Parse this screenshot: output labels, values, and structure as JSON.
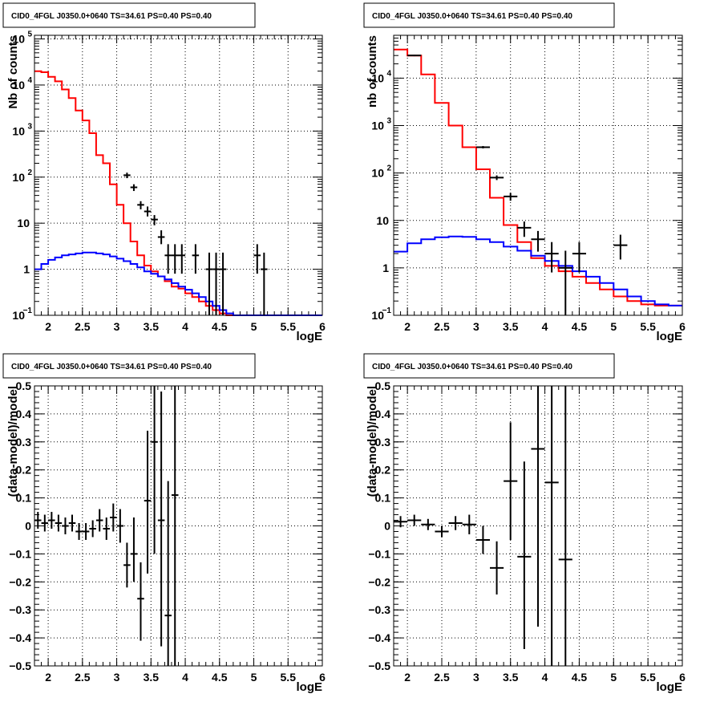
{
  "chart_data": [
    {
      "type": "line",
      "title": "CID0_4FGL J0350.0+0640 TS=34.61 PS=0.40 PS=0.40",
      "xlabel": "logE",
      "ylabel": "Nb of counts",
      "xlim": [
        1.8,
        6.0
      ],
      "ylim": [
        0.1,
        120000
      ],
      "yscale": "log",
      "grid": true,
      "x_ticks": [
        "2",
        "2.5",
        "3",
        "3.5",
        "4",
        "4.5",
        "5",
        "5.5",
        "6"
      ],
      "series": [
        {
          "kind": "step",
          "color": "#ff0000",
          "x0": 1.8,
          "width": 0.1,
          "values": [
            20000,
            19000,
            15000,
            12000,
            8000,
            5200,
            2800,
            1700,
            900,
            300,
            200,
            70,
            25,
            10,
            4,
            2,
            1.2,
            0.9,
            0.7,
            0.55,
            0.42,
            0.38,
            0.3,
            0.25,
            0.2,
            0.16,
            0.13,
            0.11,
            0.1,
            0.09,
            0.09,
            0.08,
            0.08,
            0.08,
            0.08,
            0.08,
            0.08,
            0.08,
            0.08,
            0.08,
            0.08,
            0.08
          ]
        },
        {
          "kind": "step",
          "color": "#0000ff",
          "x0": 1.8,
          "width": 0.1,
          "values": [
            1.0,
            1.3,
            1.6,
            1.8,
            2.0,
            2.1,
            2.2,
            2.3,
            2.3,
            2.2,
            2.1,
            1.9,
            1.7,
            1.5,
            1.3,
            1.1,
            0.9,
            0.8,
            0.7,
            0.6,
            0.5,
            0.42,
            0.36,
            0.3,
            0.25,
            0.2,
            0.16,
            0.13,
            0.11,
            0.1,
            0.09,
            0.08,
            0.08,
            0.08,
            0.08,
            0.08,
            0.08,
            0.08,
            0.08,
            0.08,
            0.08,
            0.08
          ]
        },
        {
          "kind": "errorbar",
          "color": "#000000",
          "points": [
            {
              "x": 3.15,
              "y": 110,
              "lo": 95,
              "hi": 125,
              "xerr": 0.05
            },
            {
              "x": 3.25,
              "y": 60,
              "lo": 50,
              "hi": 70,
              "xerr": 0.05
            },
            {
              "x": 3.35,
              "y": 25,
              "lo": 20,
              "hi": 30,
              "xerr": 0.05
            },
            {
              "x": 3.45,
              "y": 18,
              "lo": 14,
              "hi": 23,
              "xerr": 0.05
            },
            {
              "x": 3.55,
              "y": 12,
              "lo": 9,
              "hi": 15,
              "xerr": 0.05
            },
            {
              "x": 3.65,
              "y": 5,
              "lo": 3.5,
              "hi": 7,
              "xerr": 0.05
            },
            {
              "x": 3.75,
              "y": 2,
              "lo": 0.8,
              "hi": 3.5,
              "xerr": 0.05
            },
            {
              "x": 3.85,
              "y": 2,
              "lo": 0.8,
              "hi": 3.5,
              "xerr": 0.05
            },
            {
              "x": 3.95,
              "y": 2,
              "lo": 0.8,
              "hi": 3.5,
              "xerr": 0.05
            },
            {
              "x": 4.15,
              "y": 2,
              "lo": 0.8,
              "hi": 3.5,
              "xerr": 0.05
            },
            {
              "x": 4.35,
              "y": 1,
              "lo": 0.1,
              "hi": 2.3,
              "xerr": 0.05
            },
            {
              "x": 4.45,
              "y": 1,
              "lo": 0.1,
              "hi": 2.3,
              "xerr": 0.05
            },
            {
              "x": 4.55,
              "y": 1,
              "lo": 0.1,
              "hi": 2.3,
              "xerr": 0.05
            },
            {
              "x": 5.05,
              "y": 2,
              "lo": 0.8,
              "hi": 3.5,
              "xerr": 0.05
            },
            {
              "x": 5.15,
              "y": 1,
              "lo": 0.1,
              "hi": 2.3,
              "xerr": 0.05
            }
          ]
        }
      ]
    },
    {
      "type": "line",
      "title": "CID0_4FGL J0350.0+0640 TS=34.61 PS=0.40 PS=0.40",
      "xlabel": "logE",
      "ylabel": "nb of counts",
      "xlim": [
        1.8,
        6.0
      ],
      "ylim": [
        0.1,
        80000
      ],
      "yscale": "log",
      "grid": true,
      "x_ticks": [
        "2",
        "2.5",
        "3",
        "3.5",
        "4",
        "4.5",
        "5",
        "5.5",
        "6"
      ],
      "series": [
        {
          "kind": "step",
          "color": "#ff0000",
          "x0": 1.8,
          "width": 0.2,
          "values": [
            40000,
            30000,
            12000,
            3000,
            1000,
            350,
            120,
            30,
            8,
            3.5,
            1.6,
            1.1,
            0.85,
            0.65,
            0.48,
            0.35,
            0.25,
            0.2,
            0.17,
            0.16,
            0.16
          ]
        },
        {
          "kind": "step",
          "color": "#0000ff",
          "x0": 1.8,
          "width": 0.2,
          "values": [
            2.2,
            3.3,
            4.0,
            4.4,
            4.6,
            4.5,
            4.0,
            3.5,
            2.8,
            2.3,
            1.8,
            1.4,
            1.1,
            0.85,
            0.65,
            0.48,
            0.35,
            0.25,
            0.2,
            0.17,
            0.16
          ]
        },
        {
          "kind": "errorbar",
          "color": "#000000",
          "points": [
            {
              "x": 2.1,
              "y": 30000,
              "lo": 29000,
              "hi": 31000,
              "xerr": 0.1
            },
            {
              "x": 3.1,
              "y": 350,
              "lo": 330,
              "hi": 370,
              "xerr": 0.1
            },
            {
              "x": 3.3,
              "y": 80,
              "lo": 71,
              "hi": 89,
              "xerr": 0.1
            },
            {
              "x": 3.5,
              "y": 32,
              "lo": 26,
              "hi": 38,
              "xerr": 0.1
            },
            {
              "x": 3.7,
              "y": 7,
              "lo": 4.5,
              "hi": 9.5,
              "xerr": 0.1
            },
            {
              "x": 3.9,
              "y": 4,
              "lo": 2.2,
              "hi": 6,
              "xerr": 0.1
            },
            {
              "x": 4.1,
              "y": 2,
              "lo": 0.8,
              "hi": 3.5,
              "xerr": 0.1
            },
            {
              "x": 4.3,
              "y": 1,
              "lo": 0.1,
              "hi": 2.3,
              "xerr": 0.1
            },
            {
              "x": 4.5,
              "y": 2,
              "lo": 0.8,
              "hi": 3.5,
              "xerr": 0.1
            },
            {
              "x": 5.1,
              "y": 3,
              "lo": 1.5,
              "hi": 5,
              "xerr": 0.1
            }
          ]
        }
      ]
    },
    {
      "type": "scatter",
      "title": "CID0_4FGL J0350.0+0640 TS=34.61 PS=0.40 PS=0.40",
      "xlabel": "logE",
      "ylabel": "(data-model)/model",
      "xlim": [
        1.8,
        6.0
      ],
      "ylim": [
        -0.5,
        0.5
      ],
      "yscale": "linear",
      "grid": true,
      "x_ticks": [
        "2",
        "2.5",
        "3",
        "3.5",
        "4",
        "4.5",
        "5",
        "5.5",
        "6"
      ],
      "y_ticks": [
        "-0.5",
        "-0.4",
        "-0.3",
        "-0.2",
        "-0.1",
        "0",
        "0.1",
        "0.2",
        "0.3",
        "0.4",
        "0.5"
      ],
      "series": [
        {
          "kind": "errorbar",
          "color": "#000000",
          "points": [
            {
              "x": 1.85,
              "y": 0.02,
              "lo": -0.01,
              "hi": 0.05,
              "xerr": 0.05
            },
            {
              "x": 1.95,
              "y": 0.01,
              "lo": -0.02,
              "hi": 0.04,
              "xerr": 0.05
            },
            {
              "x": 2.05,
              "y": 0.02,
              "lo": -0.01,
              "hi": 0.05,
              "xerr": 0.05
            },
            {
              "x": 2.15,
              "y": 0.01,
              "lo": -0.02,
              "hi": 0.04,
              "xerr": 0.05
            },
            {
              "x": 2.25,
              "y": 0.0,
              "lo": -0.03,
              "hi": 0.03,
              "xerr": 0.05
            },
            {
              "x": 2.35,
              "y": 0.01,
              "lo": -0.02,
              "hi": 0.04,
              "xerr": 0.05
            },
            {
              "x": 2.45,
              "y": -0.02,
              "lo": -0.05,
              "hi": 0.01,
              "xerr": 0.05
            },
            {
              "x": 2.55,
              "y": -0.02,
              "lo": -0.05,
              "hi": 0.01,
              "xerr": 0.05
            },
            {
              "x": 2.65,
              "y": -0.01,
              "lo": -0.04,
              "hi": 0.02,
              "xerr": 0.05
            },
            {
              "x": 2.75,
              "y": 0.02,
              "lo": -0.02,
              "hi": 0.06,
              "xerr": 0.05
            },
            {
              "x": 2.85,
              "y": -0.01,
              "lo": -0.05,
              "hi": 0.03,
              "xerr": 0.05
            },
            {
              "x": 2.95,
              "y": 0.03,
              "lo": -0.02,
              "hi": 0.08,
              "xerr": 0.05
            },
            {
              "x": 3.05,
              "y": 0.0,
              "lo": -0.06,
              "hi": 0.06,
              "xerr": 0.05
            },
            {
              "x": 3.15,
              "y": -0.14,
              "lo": -0.22,
              "hi": -0.06,
              "xerr": 0.05
            },
            {
              "x": 3.25,
              "y": -0.1,
              "lo": -0.2,
              "hi": 0.03,
              "xerr": 0.05
            },
            {
              "x": 3.35,
              "y": -0.26,
              "lo": -0.41,
              "hi": -0.13,
              "xerr": 0.05
            },
            {
              "x": 3.45,
              "y": 0.09,
              "lo": -0.17,
              "hi": 0.34,
              "xerr": 0.05
            },
            {
              "x": 3.55,
              "y": 0.3,
              "lo": -0.1,
              "hi": 0.5,
              "xerr": 0.05
            },
            {
              "x": 3.65,
              "y": 0.02,
              "lo": -0.43,
              "hi": 0.48,
              "xerr": 0.05
            },
            {
              "x": 3.75,
              "y": -0.32,
              "lo": -0.5,
              "hi": 0.16,
              "xerr": 0.05
            },
            {
              "x": 3.85,
              "y": 0.11,
              "lo": -0.5,
              "hi": 0.5,
              "xerr": 0.05
            }
          ]
        }
      ]
    },
    {
      "type": "scatter",
      "title": "CID0_4FGL J0350.0+0640 TS=34.61 PS=0.40 PS=0.40",
      "xlabel": "logE",
      "ylabel": "(data-model)/model",
      "xlim": [
        1.8,
        6.0
      ],
      "ylim": [
        -0.5,
        0.5
      ],
      "yscale": "linear",
      "grid": true,
      "x_ticks": [
        "2",
        "2.5",
        "3",
        "3.5",
        "4",
        "4.5",
        "5",
        "5.5",
        "6"
      ],
      "y_ticks": [
        "-0.5",
        "-0.4",
        "-0.3",
        "-0.2",
        "-0.1",
        "0",
        "0.1",
        "0.2",
        "0.3",
        "0.4",
        "0.5"
      ],
      "series": [
        {
          "kind": "errorbar",
          "color": "#000000",
          "points": [
            {
              "x": 1.9,
              "y": 0.015,
              "lo": -0.005,
              "hi": 0.035,
              "xerr": 0.1
            },
            {
              "x": 2.1,
              "y": 0.02,
              "lo": 0.0,
              "hi": 0.04,
              "xerr": 0.1
            },
            {
              "x": 2.3,
              "y": 0.005,
              "lo": -0.015,
              "hi": 0.025,
              "xerr": 0.1
            },
            {
              "x": 2.5,
              "y": -0.02,
              "lo": -0.04,
              "hi": 0.0,
              "xerr": 0.1
            },
            {
              "x": 2.7,
              "y": 0.01,
              "lo": -0.015,
              "hi": 0.035,
              "xerr": 0.1
            },
            {
              "x": 2.9,
              "y": 0.005,
              "lo": -0.03,
              "hi": 0.04,
              "xerr": 0.1
            },
            {
              "x": 3.1,
              "y": -0.05,
              "lo": -0.1,
              "hi": 0.0,
              "xerr": 0.1
            },
            {
              "x": 3.3,
              "y": -0.15,
              "lo": -0.245,
              "hi": -0.055,
              "xerr": 0.1
            },
            {
              "x": 3.5,
              "y": 0.16,
              "lo": -0.05,
              "hi": 0.37,
              "xerr": 0.1
            },
            {
              "x": 3.7,
              "y": -0.11,
              "lo": -0.44,
              "hi": 0.23,
              "xerr": 0.1
            },
            {
              "x": 3.9,
              "y": 0.275,
              "lo": -0.36,
              "hi": 0.5,
              "xerr": 0.1
            },
            {
              "x": 4.1,
              "y": 0.155,
              "lo": -0.5,
              "hi": 0.5,
              "xerr": 0.1
            },
            {
              "x": 4.3,
              "y": -0.12,
              "lo": -0.5,
              "hi": 0.5,
              "xerr": 0.1
            }
          ]
        }
      ]
    }
  ]
}
